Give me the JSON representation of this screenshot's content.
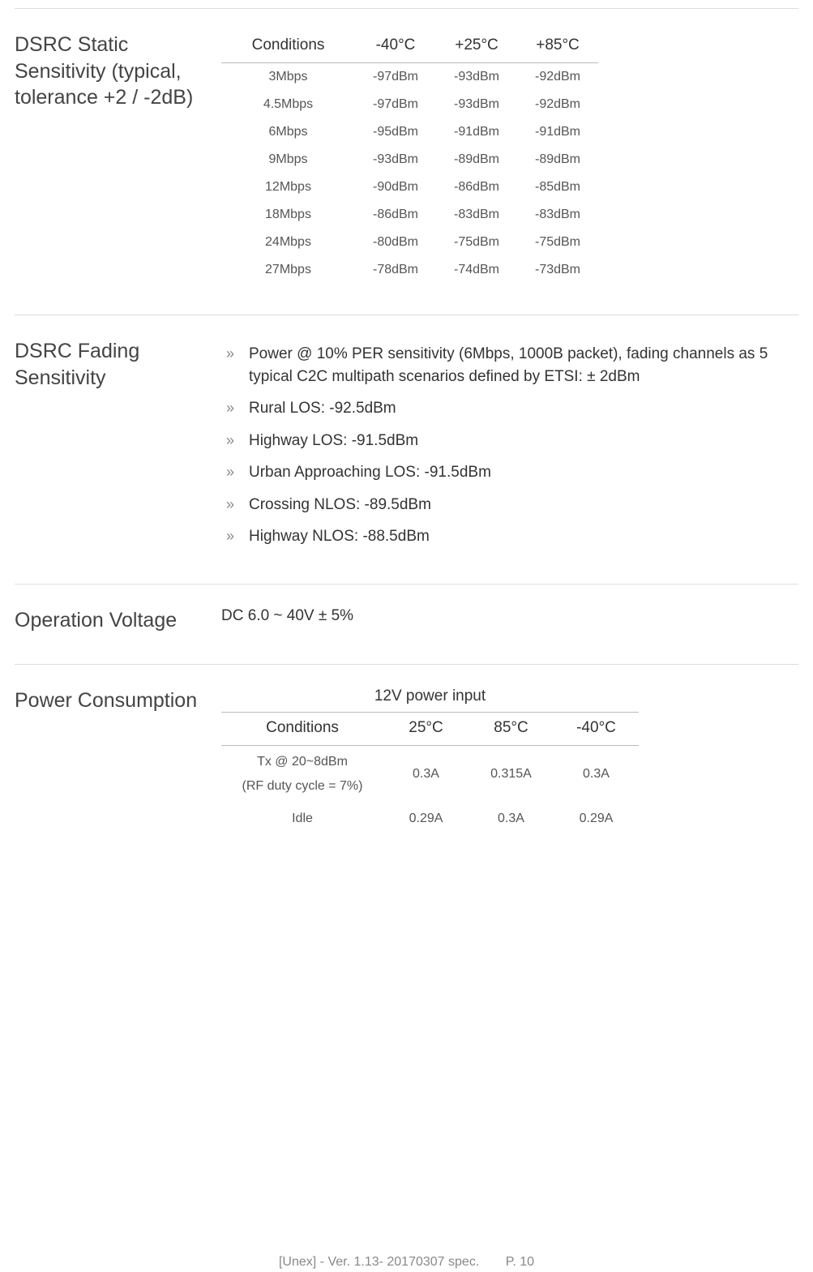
{
  "sections": {
    "static": {
      "title": "DSRC Static Sensitivity (typical, tolerance +2 / -2dB)",
      "headers": [
        "Conditions",
        "-40°C",
        "+25°C",
        "+85°C"
      ],
      "rows": [
        [
          "3Mbps",
          "-97dBm",
          "-93dBm",
          "-92dBm"
        ],
        [
          "4.5Mbps",
          "-97dBm",
          "-93dBm",
          "-92dBm"
        ],
        [
          "6Mbps",
          "-95dBm",
          "-91dBm",
          "-91dBm"
        ],
        [
          "9Mbps",
          "-93dBm",
          "-89dBm",
          "-89dBm"
        ],
        [
          "12Mbps",
          "-90dBm",
          "-86dBm",
          "-85dBm"
        ],
        [
          "18Mbps",
          "-86dBm",
          "-83dBm",
          "-83dBm"
        ],
        [
          "24Mbps",
          "-80dBm",
          "-75dBm",
          "-75dBm"
        ],
        [
          "27Mbps",
          "-78dBm",
          "-74dBm",
          "-73dBm"
        ]
      ]
    },
    "fading": {
      "title": "DSRC Fading Sensitivity",
      "items": [
        "Power @ 10% PER sensitivity (6Mbps, 1000B packet), fading channels as 5 typical C2C multipath scenarios defined by ETSI: ± 2dBm",
        "Rural LOS: -92.5dBm",
        "Highway LOS: -91.5dBm",
        "Urban Approaching LOS: -91.5dBm",
        "Crossing NLOS: -89.5dBm",
        "Highway NLOS: -88.5dBm"
      ]
    },
    "voltage": {
      "title": "Operation Voltage",
      "value": "DC 6.0 ~ 40V ± 5%"
    },
    "power": {
      "title": "Power Consumption",
      "caption": "12V power input",
      "headers": [
        "Conditions",
        "25°C",
        "85°C",
        "-40°C"
      ],
      "rows": [
        {
          "cond_main": "Tx @ 20~8dBm",
          "cond_sub": "(RF duty cycle = 7%)",
          "cells": [
            "0.3A",
            "0.315A",
            "0.3A"
          ]
        },
        {
          "cond_main": "Idle",
          "cond_sub": "",
          "cells": [
            "0.29A",
            "0.3A",
            "0.29A"
          ]
        }
      ]
    }
  },
  "footer": {
    "left": "[Unex] - Ver. 1.13- 20170307 spec.",
    "page": "P. 10"
  },
  "style": {
    "border_color": "#dddddd",
    "header_rule_color": "#bbbbbb",
    "title_fontsize": 25,
    "body_fontsize": 19,
    "cell_fontsize": 16,
    "text_color": "#333333",
    "muted_color": "#888888"
  }
}
